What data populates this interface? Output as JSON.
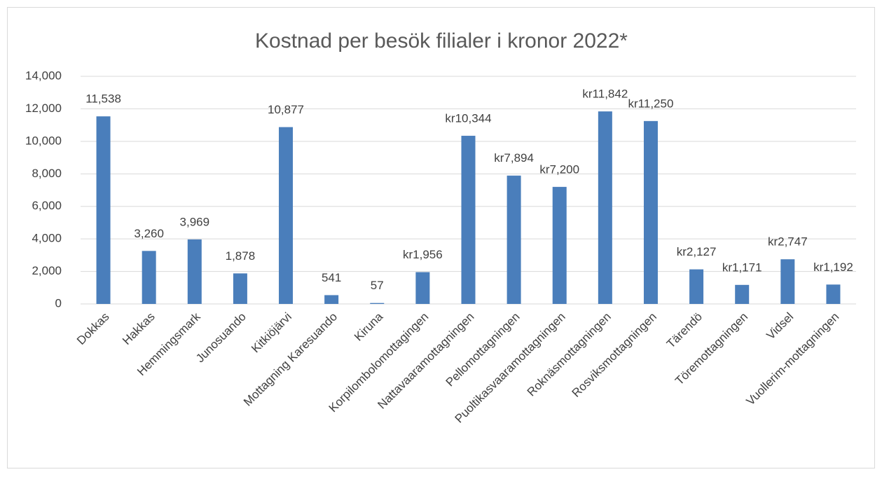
{
  "chart_data": {
    "type": "bar",
    "title": "Kostnad per besök filialer i kronor 2022*",
    "categories": [
      "Dokkas",
      "Hakkas",
      "Hemmingsmark",
      "Junosuando",
      "Kitkiöjärvi",
      "Mottagning Karesuando",
      "Kiruna",
      "Korpilombolomottagingen",
      "Nattavaaramottagningen",
      "Pellomottagningen",
      "Puoltikasvaaramottagningen",
      "Roknäsmottagningen",
      "Rosviksmottagningen",
      "Tärendö",
      "Töremottagningen",
      "Vidsel",
      "Vuollerim-mottagningen"
    ],
    "values": [
      11538,
      3260,
      3969,
      1878,
      10877,
      541,
      57,
      1956,
      10344,
      7894,
      7200,
      11842,
      11250,
      2127,
      1171,
      2747,
      1192
    ],
    "value_labels": [
      "11,538",
      "3,260",
      "3,969",
      "1,878",
      "10,877",
      "541",
      "57",
      "kr1,956",
      "kr10,344",
      "kr7,894",
      "kr7,200",
      "kr11,842",
      "kr11,250",
      "kr2,127",
      "kr1,171",
      "kr2,747",
      "kr1,192"
    ],
    "color": "#4a7ebb",
    "ylim": [
      0,
      14000
    ],
    "yticks": [
      0,
      {
        "value": 2000,
        "label": "2,000"
      },
      {
        "value": 4000,
        "label": "4,000"
      },
      {
        "value": 6000,
        "label": "6,000"
      },
      {
        "value": 8000,
        "label": "8,000"
      },
      {
        "value": 10000,
        "label": "10,000"
      },
      {
        "value": 12000,
        "label": "12,000"
      },
      {
        "value": 14000,
        "label": "14,000"
      }
    ],
    "grid": true
  }
}
